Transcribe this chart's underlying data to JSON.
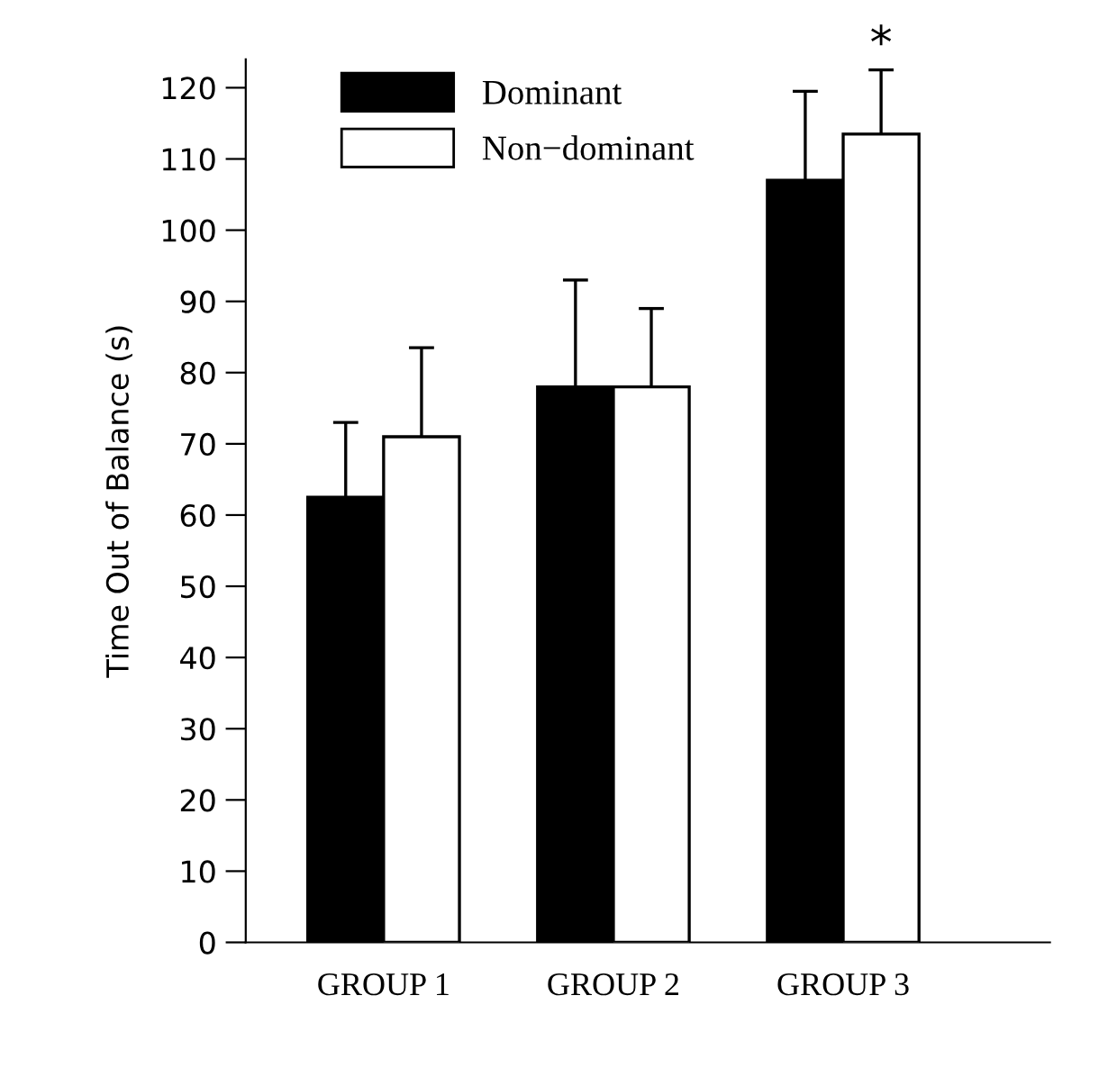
{
  "chart_data": {
    "type": "bar",
    "ylabel": "Time Out of Balance (s)",
    "categories": [
      "GROUP 1",
      "GROUP 2",
      "GROUP 3"
    ],
    "series": [
      {
        "name": "Dominant",
        "color": "#000000",
        "values": [
          62.5,
          78,
          107
        ],
        "errors": [
          10.5,
          15,
          12.5
        ]
      },
      {
        "name": "Non−dominant",
        "color": "#ffffff",
        "values": [
          71,
          78,
          113.5
        ],
        "errors": [
          12.5,
          11,
          9
        ]
      }
    ],
    "ylim": [
      0,
      124
    ],
    "yticks": [
      0,
      10,
      20,
      30,
      40,
      50,
      60,
      70,
      80,
      90,
      100,
      110,
      120
    ],
    "annotations": [
      "*"
    ],
    "grid": false,
    "legend": "top left"
  }
}
